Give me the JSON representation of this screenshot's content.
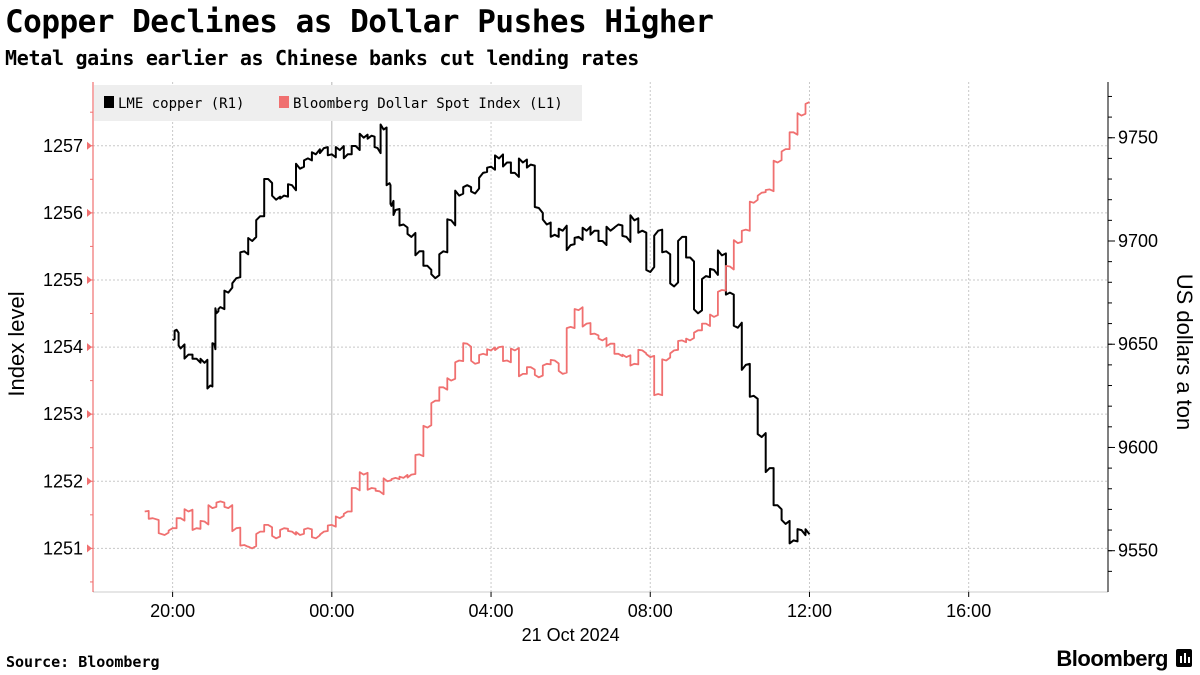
{
  "header": {
    "title": "Copper Declines as Dollar Pushes Higher",
    "subtitle": "Metal gains earlier as Chinese banks cut lending rates"
  },
  "footer": {
    "source": "Source: Bloomberg",
    "brand": "Bloomberg"
  },
  "colors": {
    "copper": "#000000",
    "dollar": "#f07070",
    "grid": "#c8c8c8",
    "legend_bg": "#eeeeee"
  },
  "chart_data": {
    "type": "line",
    "title": "Copper Declines as Dollar Pushes Higher",
    "subtitle": "Metal gains earlier as Chinese banks cut lending rates",
    "xlabel": "21 Oct 2024",
    "x_ticks": [
      "20:00",
      "00:00",
      "04:00",
      "08:00",
      "12:00",
      "16:00"
    ],
    "x_tick_hours": [
      -4,
      0,
      4,
      8,
      12,
      16
    ],
    "xlim_hours": [
      -6,
      19.5
    ],
    "y_left": {
      "label": "Index level",
      "ticks": [
        1251,
        1252,
        1253,
        1254,
        1255,
        1256,
        1257
      ],
      "lim": [
        1250.35,
        1257.95
      ]
    },
    "y_right": {
      "label": "US dollars a ton",
      "ticks": [
        9550,
        9600,
        9650,
        9700,
        9750
      ],
      "lim": [
        9530,
        9777
      ]
    },
    "grid": true,
    "legend": {
      "position": "top-left",
      "entries": [
        "LME copper (R1)",
        "Bloomberg Dollar Spot Index (L1)"
      ]
    },
    "series": [
      {
        "name": "LME copper (R1)",
        "axis": "right",
        "x_hours": [
          -4.0,
          -3.9,
          -3.8,
          -3.6,
          -3.4,
          -3.2,
          -3.05,
          -2.95,
          -2.9,
          -2.8,
          -2.6,
          -2.4,
          -2.2,
          -2.0,
          -1.8,
          -1.6,
          -1.4,
          -1.2,
          -1.0,
          -0.8,
          -0.6,
          -0.4,
          -0.2,
          0.0,
          0.2,
          0.4,
          0.6,
          0.8,
          1.0,
          1.15,
          1.3,
          1.45,
          1.5,
          1.6,
          1.8,
          2.0,
          2.2,
          2.4,
          2.6,
          2.8,
          3.0,
          3.2,
          3.4,
          3.6,
          3.8,
          4.0,
          4.2,
          4.4,
          4.6,
          4.8,
          5.0,
          5.2,
          5.4,
          5.6,
          5.8,
          6.0,
          6.2,
          6.4,
          6.6,
          6.8,
          7.0,
          7.2,
          7.4,
          7.6,
          7.8,
          8.0,
          8.2,
          8.4,
          8.6,
          8.8,
          9.0,
          9.2,
          9.4,
          9.6,
          9.8,
          10.0,
          10.2,
          10.4,
          10.6,
          10.8,
          11.0,
          11.2,
          11.4,
          11.6,
          11.8,
          12.0
        ],
        "values": [
          9652,
          9657,
          9648,
          9645,
          9643,
          9641,
          9630,
          9650,
          9665,
          9668,
          9675,
          9682,
          9695,
          9700,
          9712,
          9730,
          9720,
          9722,
          9727,
          9735,
          9740,
          9742,
          9745,
          9742,
          9744,
          9742,
          9746,
          9750,
          9751,
          9745,
          9754,
          9728,
          9717,
          9715,
          9708,
          9702,
          9695,
          9688,
          9682,
          9695,
          9710,
          9722,
          9727,
          9723,
          9733,
          9736,
          9740,
          9738,
          9733,
          9738,
          9737,
          9716,
          9708,
          9703,
          9705,
          9698,
          9702,
          9705,
          9705,
          9700,
          9705,
          9708,
          9702,
          9710,
          9705,
          9685,
          9705,
          9695,
          9678,
          9702,
          9692,
          9665,
          9683,
          9686,
          9693,
          9675,
          9658,
          9640,
          9625,
          9605,
          9590,
          9572,
          9563,
          9555,
          9560,
          9558
        ]
      },
      {
        "name": "Bloomberg Dollar Spot Index (L1)",
        "axis": "left",
        "x_hours": [
          -4.7,
          -4.5,
          -4.2,
          -4.0,
          -3.8,
          -3.6,
          -3.4,
          -3.2,
          -3.0,
          -2.8,
          -2.6,
          -2.4,
          -2.2,
          -2.0,
          -1.8,
          -1.6,
          -1.4,
          -1.2,
          -1.0,
          -0.8,
          -0.6,
          -0.4,
          -0.2,
          0.0,
          0.2,
          0.4,
          0.6,
          0.8,
          1.0,
          1.2,
          1.4,
          1.6,
          1.8,
          2.0,
          2.2,
          2.4,
          2.6,
          2.8,
          3.0,
          3.2,
          3.4,
          3.6,
          3.8,
          4.0,
          4.2,
          4.4,
          4.6,
          4.8,
          5.0,
          5.2,
          5.4,
          5.6,
          5.8,
          6.0,
          6.2,
          6.4,
          6.6,
          6.8,
          7.0,
          7.2,
          7.4,
          7.6,
          7.8,
          8.0,
          8.2,
          8.4,
          8.6,
          8.8,
          9.0,
          9.2,
          9.4,
          9.6,
          9.8,
          10.0,
          10.2,
          10.4,
          10.6,
          10.8,
          11.0,
          11.2,
          11.4,
          11.6,
          11.8,
          12.0
        ],
        "values": [
          1251.55,
          1251.45,
          1251.2,
          1251.3,
          1251.45,
          1251.55,
          1251.3,
          1251.4,
          1251.6,
          1251.7,
          1251.6,
          1251.3,
          1251.05,
          1251.0,
          1251.25,
          1251.35,
          1251.15,
          1251.3,
          1251.25,
          1251.2,
          1251.3,
          1251.15,
          1251.25,
          1251.35,
          1251.45,
          1251.55,
          1251.9,
          1252.1,
          1251.9,
          1251.85,
          1252.0,
          1252.05,
          1252.05,
          1252.1,
          1252.4,
          1252.8,
          1253.2,
          1253.4,
          1253.5,
          1253.8,
          1254.05,
          1253.75,
          1253.9,
          1253.95,
          1254.0,
          1253.8,
          1253.95,
          1253.6,
          1253.7,
          1253.55,
          1253.75,
          1253.8,
          1253.6,
          1254.3,
          1254.55,
          1254.35,
          1254.2,
          1254.1,
          1254.05,
          1253.9,
          1253.85,
          1253.75,
          1253.95,
          1253.85,
          1253.3,
          1253.8,
          1253.95,
          1254.1,
          1254.1,
          1254.25,
          1254.35,
          1254.45,
          1254.85,
          1255.2,
          1255.55,
          1255.75,
          1256.15,
          1256.3,
          1256.35,
          1256.75,
          1256.95,
          1257.2,
          1257.45,
          1257.65
        ]
      }
    ]
  }
}
